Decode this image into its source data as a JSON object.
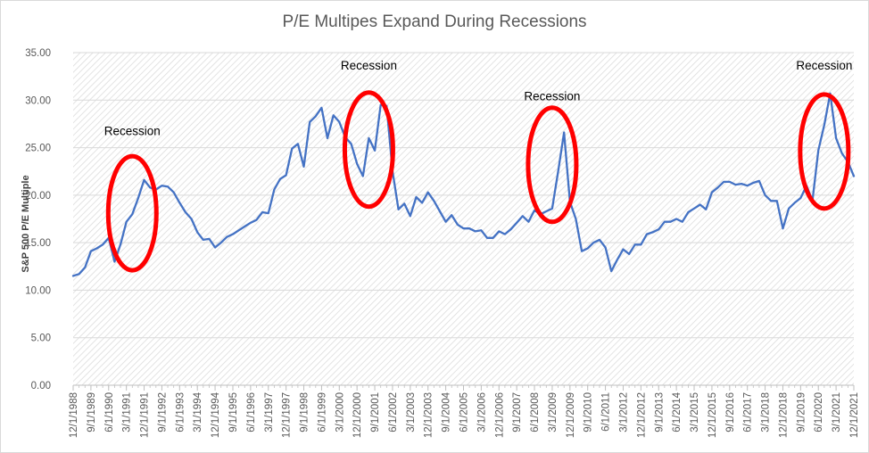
{
  "chart_data": {
    "type": "line",
    "title": "P/E Multipes Expand During Recessions",
    "xlabel": "",
    "ylabel": "S&P 500 P/E Multiple",
    "ylim": [
      0,
      35
    ],
    "yticks": [
      "0.00",
      "5.00",
      "10.00",
      "15.00",
      "20.00",
      "25.00",
      "30.00",
      "35.00"
    ],
    "grid": true,
    "legend": "none",
    "x_start": "12/1/1988",
    "x_end": "12/1/2021",
    "x_frequency": "quarterly",
    "xtick_labels": [
      "12/1/1988",
      "9/1/1989",
      "6/1/1990",
      "3/1/1991",
      "12/1/1991",
      "9/1/1992",
      "6/1/1993",
      "3/1/1994",
      "12/1/1994",
      "9/1/1995",
      "6/1/1996",
      "3/1/1997",
      "12/1/1997",
      "9/1/1998",
      "6/1/1999",
      "3/1/2000",
      "12/1/2000",
      "9/1/2001",
      "6/1/2002",
      "3/1/2003",
      "12/1/2003",
      "9/1/2004",
      "6/1/2005",
      "3/1/2006",
      "12/1/2006",
      "9/1/2007",
      "6/1/2008",
      "3/1/2009",
      "12/1/2009",
      "9/1/2010",
      "6/1/2011",
      "3/1/2012",
      "12/1/2012",
      "9/1/2013",
      "6/1/2014",
      "3/1/2015",
      "12/1/2015",
      "9/1/2016",
      "6/1/2017",
      "3/1/2018",
      "12/1/2018",
      "9/1/2019",
      "6/1/2020",
      "3/1/2021",
      "12/1/2021"
    ],
    "series": [
      {
        "name": "S&P 500 P/E Multiple",
        "color": "#4472c4",
        "values": [
          11.5,
          11.7,
          12.4,
          14.1,
          14.4,
          14.8,
          15.5,
          13.0,
          14.8,
          17.2,
          18.0,
          19.7,
          21.6,
          20.8,
          20.6,
          21.0,
          20.9,
          20.3,
          19.2,
          18.2,
          17.5,
          16.1,
          15.3,
          15.4,
          14.5,
          15.0,
          15.6,
          15.9,
          16.3,
          16.7,
          17.1,
          17.4,
          18.2,
          18.1,
          20.6,
          21.7,
          22.1,
          24.9,
          25.4,
          23.0,
          27.7,
          28.3,
          29.2,
          26.0,
          28.4,
          27.7,
          26.1,
          25.4,
          23.3,
          22.0,
          26.0,
          24.7,
          29.5,
          29.4,
          22.5,
          18.5,
          19.1,
          17.8,
          19.8,
          19.2,
          20.3,
          19.4,
          18.3,
          17.2,
          17.9,
          16.9,
          16.5,
          16.5,
          16.2,
          16.3,
          15.5,
          15.5,
          16.2,
          15.9,
          16.4,
          17.1,
          17.8,
          17.2,
          18.4,
          18.0,
          18.3,
          18.6,
          22.5,
          26.6,
          19.3,
          17.5,
          14.1,
          14.4,
          15.0,
          15.3,
          14.5,
          12.0,
          13.2,
          14.3,
          13.8,
          14.8,
          14.8,
          15.9,
          16.1,
          16.4,
          17.2,
          17.2,
          17.5,
          17.2,
          18.2,
          18.6,
          19.0,
          18.5,
          20.3,
          20.8,
          21.4,
          21.4,
          21.1,
          21.2,
          21.0,
          21.3,
          21.5,
          20.0,
          19.4,
          19.4,
          16.5,
          18.6,
          19.2,
          19.7,
          21.0,
          19.4,
          24.7,
          27.4,
          30.7,
          26.0,
          24.4,
          23.5,
          22.0
        ]
      }
    ],
    "annotations": [
      {
        "text": "Recession",
        "x_index": 10,
        "y_value": 26.3,
        "circle": {
          "x_index": 10,
          "y_center": 18.1,
          "color": "#ff0000"
        }
      },
      {
        "text": "Recession",
        "x_index": 50,
        "y_value": 33.2,
        "circle": {
          "x_index": 50,
          "y_center": 24.8,
          "color": "#ff0000"
        }
      },
      {
        "text": "Recession",
        "x_index": 81,
        "y_value": 30.0,
        "circle": {
          "x_index": 81,
          "y_center": 23.2,
          "color": "#ff0000"
        }
      },
      {
        "text": "Recession",
        "x_index": 127,
        "y_value": 33.2,
        "circle": {
          "x_index": 127,
          "y_center": 24.6,
          "color": "#ff0000"
        }
      }
    ]
  }
}
